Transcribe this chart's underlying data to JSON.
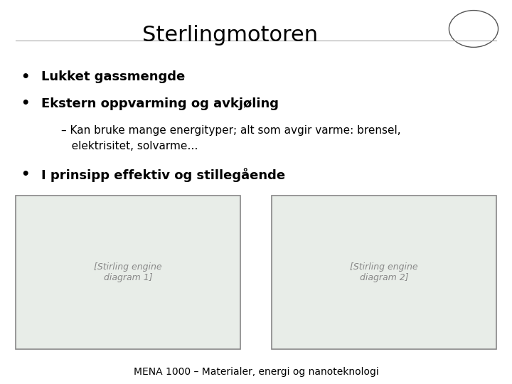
{
  "title": "Sterlingmotoren",
  "title_fontsize": 22,
  "bullet1": "Lukket gassmengde",
  "bullet2": "Ekstern oppvarming og avkjøling",
  "sub_bullet_line1": "– Kan bruke mange energityper; alt som avgir varme: brensel,",
  "sub_bullet_line2": "   elektrisitet, solvarme…",
  "bullet3": "I prinsipp effektiv og stillegående",
  "footer": "MENA 1000 – Materialer, energi og nanoteknologi",
  "background_color": "#ffffff",
  "text_color": "#000000",
  "bullet_fontsize": 13,
  "sub_bullet_fontsize": 11,
  "footer_fontsize": 10,
  "line_color": "#aaaaaa",
  "box_edge_color": "#888888",
  "box_face_color": "#e8ede8"
}
